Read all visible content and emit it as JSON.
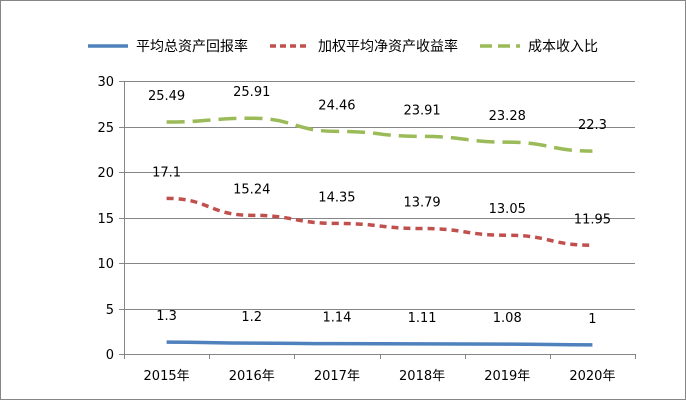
{
  "chart_data": {
    "type": "line",
    "categories": [
      "2015年",
      "2016年",
      "2017年",
      "2018年",
      "2019年",
      "2020年"
    ],
    "series": [
      {
        "name": "平均总资产回报率",
        "values": [
          1.3,
          1.2,
          1.14,
          1.11,
          1.08,
          1
        ],
        "labels": [
          "1.3",
          "1.2",
          "1.14",
          "1.11",
          "1.08",
          "1"
        ],
        "color": "#4F81BD",
        "dash": "solid"
      },
      {
        "name": "加权平均净资产收益率",
        "values": [
          17.1,
          15.24,
          14.35,
          13.79,
          13.05,
          11.95
        ],
        "labels": [
          "17.1",
          "15.24",
          "14.35",
          "13.79",
          "13.05",
          "11.95"
        ],
        "color": "#C0504D",
        "dash": "dashed"
      },
      {
        "name": "成本收入比",
        "values": [
          25.49,
          25.91,
          24.46,
          23.91,
          23.28,
          22.3
        ],
        "labels": [
          "25.49",
          "25.91",
          "24.46",
          "23.91",
          "23.28",
          "22.3"
        ],
        "color": "#9BBB59",
        "dash": "dashed-long"
      }
    ],
    "yticks": [
      "0",
      "5",
      "10",
      "15",
      "20",
      "25",
      "30"
    ],
    "ylim": [
      0,
      30
    ],
    "grid": true,
    "legend": "top"
  }
}
